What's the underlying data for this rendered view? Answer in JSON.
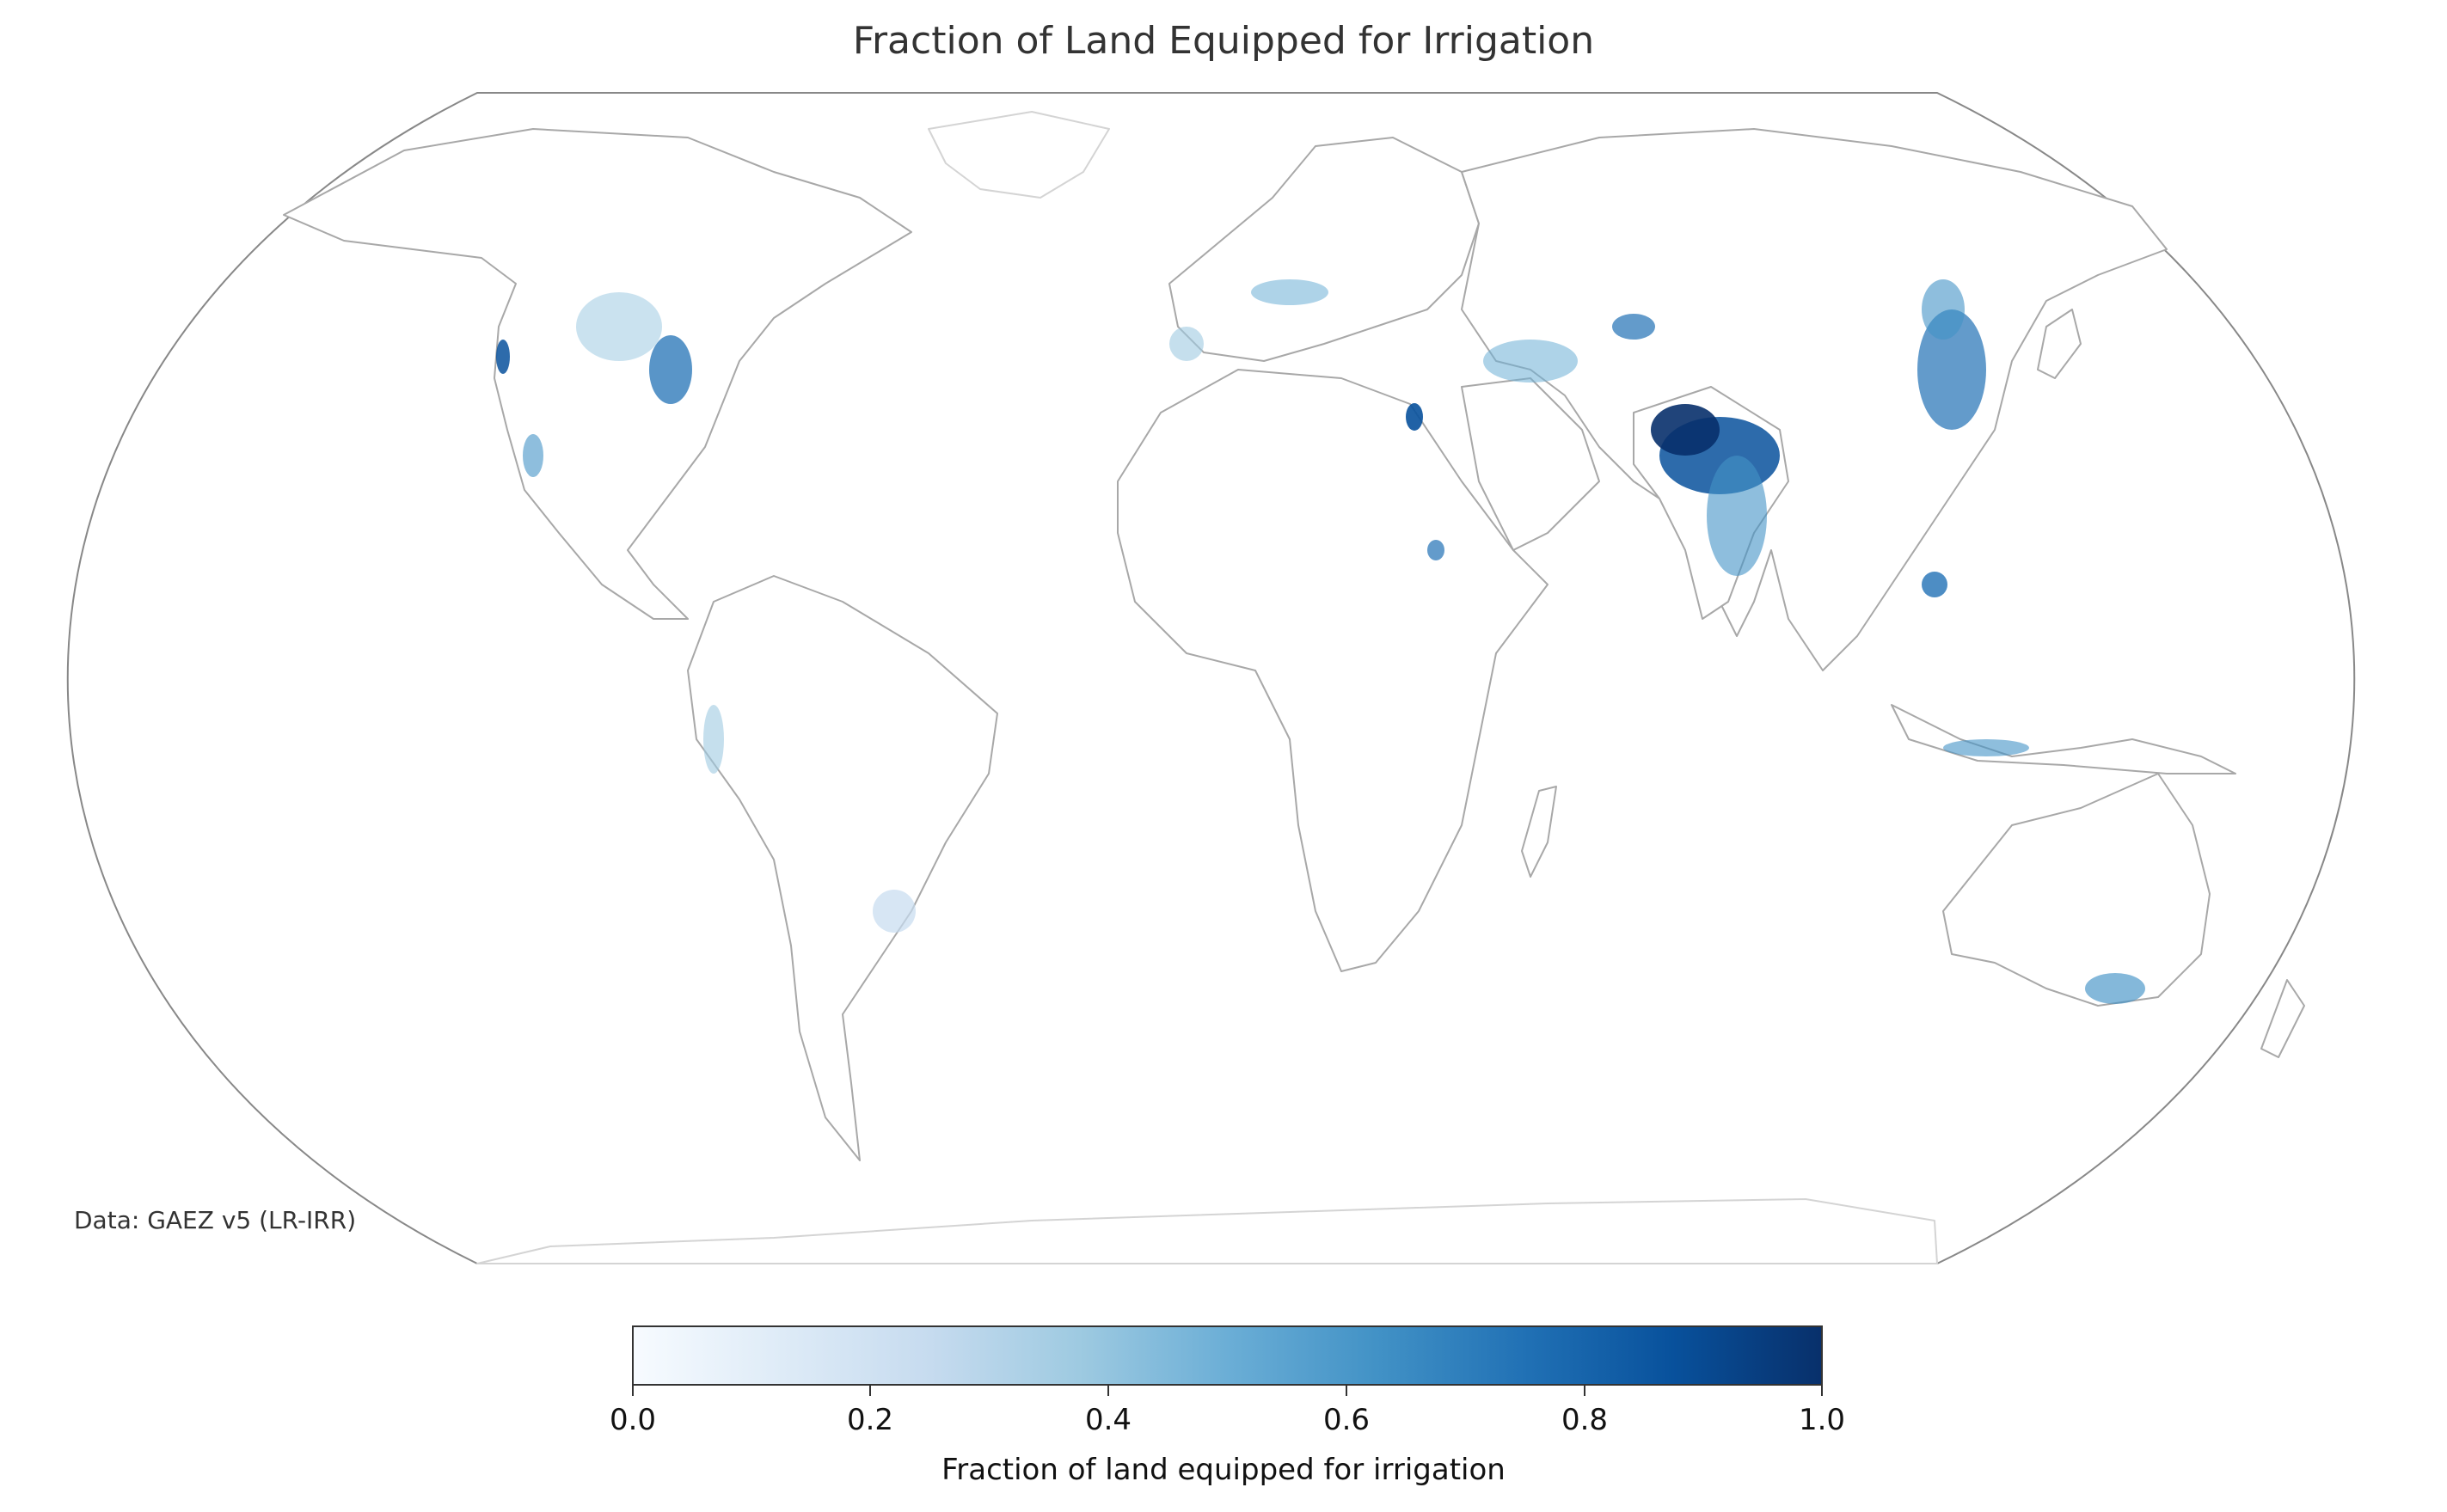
{
  "title": "Fraction of Land Equipped for Irrigation",
  "source_note": "Data: GAEZ v5 (LR-IRR)",
  "colorbar": {
    "label": "Fraction of land equipped for irrigation",
    "ticks": [
      "0.0",
      "0.2",
      "0.4",
      "0.6",
      "0.8",
      "1.0"
    ],
    "range": [
      0.0,
      1.0
    ],
    "colormap": "Blues",
    "colors": [
      "#f7fbff",
      "#deebf7",
      "#c6dbef",
      "#9ecae1",
      "#6baed6",
      "#4292c6",
      "#2171b5",
      "#08519c",
      "#08306b"
    ]
  },
  "map": {
    "projection": "Robinson",
    "coastline_color": "#aaaaaa",
    "border_color": "#999999",
    "frame_color": "#888888"
  }
}
